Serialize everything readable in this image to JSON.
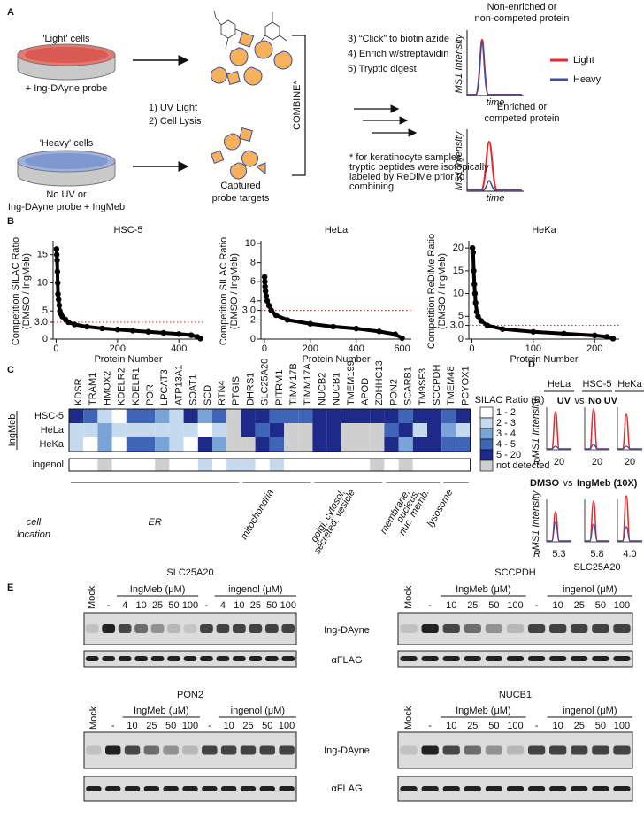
{
  "panel_a": {
    "label": "A",
    "light_cells": "'Light' cells",
    "light_probe": "+ Ing-DAyne probe",
    "heavy_cells": "'Heavy' cells",
    "heavy_probe_1": "No UV or",
    "heavy_probe_2": "Ing-DAyne probe + IngMeb",
    "steps_1": [
      "1) UV Light",
      "2) Cell Lysis"
    ],
    "captured": [
      "Captured",
      "probe targets"
    ],
    "combine": "COMBINE*",
    "steps_2": [
      "3) “Click” to biotin azide",
      "4) Enrich w/streptavidin",
      "5) Tryptic digest"
    ],
    "footnote": [
      "* for keratinocyte samples,",
      "tryptic peptides were isotopically",
      "labeled by ReDiMe prior to",
      "combining"
    ],
    "trace_top_title": [
      "Non-enriched or",
      "non-competed protein"
    ],
    "trace_bottom_title": [
      "Enriched or",
      "competed protein"
    ],
    "y_label": [
      "MS1 Intensity",
      "MS1 Intensity"
    ],
    "x_label": [
      "time",
      "time"
    ],
    "legend": [
      {
        "name": "Light",
        "color": "#e8262b"
      },
      {
        "name": "Heavy",
        "color": "#3a4ea0"
      }
    ]
  },
  "panel_b": {
    "label": "B",
    "charts": [
      {
        "type": "scatter",
        "title": "HSC-5",
        "y_label": [
          "Competition SILAC Ratio",
          "(DMSO / IngMeb)"
        ],
        "x_label": "Protein Number",
        "x": [
          1,
          2,
          3,
          4,
          5,
          6,
          8,
          10,
          12,
          15,
          20,
          30,
          40,
          60,
          100,
          150,
          200,
          250,
          300,
          350,
          400,
          440,
          460,
          470
        ],
        "values": [
          16,
          15,
          14,
          12,
          10,
          8,
          7,
          6,
          5,
          4.5,
          4,
          3.5,
          3,
          2.6,
          2.2,
          1.9,
          1.7,
          1.5,
          1.3,
          1.1,
          0.9,
          0.7,
          0.4,
          0.1
        ],
        "xlim": [
          -10,
          480
        ],
        "xticks": [
          0,
          200,
          400
        ],
        "ylim": [
          0,
          17
        ],
        "yticks": [
          0,
          {
            "value": 3,
            "label": "3.0"
          },
          5,
          10,
          15
        ],
        "threshold": 3,
        "threshold_color": "#e8262b",
        "color": "#000000"
      },
      {
        "type": "scatter",
        "title": "HeLa",
        "y_label": [
          "Competition SILAC Ratio",
          "(DMSO / IngMeb)"
        ],
        "x_label": "Protein Number",
        "x": [
          1,
          2,
          3,
          5,
          8,
          12,
          20,
          30,
          50,
          100,
          200,
          300,
          400,
          500,
          570,
          600
        ],
        "values": [
          6.5,
          6,
          5.5,
          5,
          4.5,
          4,
          3.5,
          3,
          2.5,
          2,
          1.6,
          1.3,
          1.1,
          0.8,
          0.5,
          0.1
        ],
        "xlim": [
          -15,
          640
        ],
        "xticks": [
          0,
          200,
          400,
          600
        ],
        "ylim": [
          0,
          10
        ],
        "yticks": [
          0,
          2,
          {
            "value": 3,
            "label": "3.0"
          },
          4,
          6,
          8,
          10
        ],
        "threshold": 3,
        "threshold_color": "#e8262b",
        "color": "#000000"
      },
      {
        "type": "scatter",
        "title": "HeKa",
        "y_label": [
          "Competition ReDiMe Ratio",
          "(DMSO / IngMeb)"
        ],
        "x_label": "Protein Number",
        "x": [
          1,
          2,
          3,
          4,
          5,
          6,
          8,
          10,
          15,
          25,
          50,
          100,
          150,
          200,
          220,
          230
        ],
        "values": [
          20,
          19,
          15,
          12,
          10,
          8,
          6,
          5,
          4,
          3,
          2.2,
          1.6,
          1.2,
          0.8,
          0.5,
          0.1
        ],
        "xlim": [
          -5,
          240
        ],
        "xticks": [
          0,
          100,
          200
        ],
        "ylim": [
          0,
          21
        ],
        "yticks": [
          0,
          {
            "value": 3,
            "label": "3.0"
          },
          5,
          10,
          15,
          20
        ],
        "threshold": 3,
        "threshold_color": "#e8262b",
        "color": "#000000"
      }
    ]
  },
  "panel_c": {
    "label": "C",
    "genes": [
      "KDSR",
      "TRAM1",
      "HMOX2",
      "KDELR2",
      "KDELR1",
      "POR",
      "LPCAT3",
      "ATP13A1",
      "SOAT1",
      "SCD",
      "RTN4",
      "PTGIS",
      "DHRS1",
      "SLC25A20",
      "PITRM1",
      "TIMM17B",
      "TIMM17A",
      "NUCB2",
      "NUCB1",
      "TMEM199",
      "APOD",
      "ZDHHC13",
      "PON2",
      "SCARB1",
      "TM9SF3",
      "SCCPDH",
      "TMEM48",
      "PCYOX1"
    ],
    "row_group": "IngMeb",
    "rows": [
      {
        "name": "HSC-5",
        "values": [
          4,
          3,
          1,
          0,
          3,
          3,
          2,
          1,
          4,
          2,
          3,
          5,
          4,
          4,
          3,
          3,
          3,
          4,
          4,
          4,
          4,
          4,
          4,
          3,
          4,
          4,
          3,
          4
        ]
      },
      {
        "name": "HeLa",
        "values": [
          1,
          1,
          2,
          1,
          1,
          1,
          1,
          1,
          1,
          0,
          1,
          5,
          4,
          3,
          4,
          5,
          5,
          4,
          4,
          5,
          5,
          5,
          3,
          4,
          1,
          4,
          2,
          1
        ]
      },
      {
        "name": "HeKa",
        "values": [
          1,
          0,
          2,
          0,
          3,
          3,
          2,
          1,
          0,
          4,
          2,
          5,
          5,
          4,
          3,
          5,
          5,
          4,
          4,
          5,
          5,
          5,
          4,
          2,
          4,
          4,
          3,
          3
        ]
      }
    ],
    "ingenol": {
      "name": "ingenol",
      "values": [
        0,
        0,
        5,
        0,
        0,
        0,
        5,
        0,
        0,
        1,
        0,
        1,
        1,
        0,
        1,
        0,
        0,
        0,
        0,
        0,
        0,
        5,
        0,
        5,
        0,
        0,
        0,
        0
      ]
    },
    "legend_title": "SILAC Ratio (R)",
    "levels": [
      {
        "label": "1 - 2",
        "color": "#ffffff"
      },
      {
        "label": "2 - 3",
        "color": "#c5d9ef"
      },
      {
        "label": "3 - 4",
        "color": "#7aa3d8"
      },
      {
        "label": "4 - 5",
        "color": "#3f65b8"
      },
      {
        "label": "5 - 20",
        "color": "#1d2a8a"
      },
      {
        "label": "not detected",
        "color": "#cfcfcf"
      }
    ],
    "location_title": [
      "cell",
      "location"
    ],
    "locations": [
      [
        "ER"
      ],
      [
        "mitochondria"
      ],
      [
        "golgi, cytosol,",
        "secreted, vesicle"
      ],
      [
        "membrane,",
        "nucleus,",
        "nuc. memb."
      ],
      [
        "lysosome"
      ]
    ]
  },
  "panel_d": {
    "label": "D",
    "columns": [
      "HeLa",
      "HSC-5",
      "HeKa"
    ],
    "top_legend": [
      "UV",
      "vs",
      "No UV"
    ],
    "bottom_legend": [
      "DMSO",
      "vs",
      "IngMeb (10X)"
    ],
    "y_label": [
      "MS1 Intensity",
      "MS1 Intensity"
    ],
    "r_label": [
      "R",
      "R"
    ],
    "top_r": [
      "20",
      "20",
      "20"
    ],
    "bottom_r": [
      "5.3",
      "5.8",
      "4.0"
    ],
    "protein": "SLC25A20"
  },
  "panel_e": {
    "label": "E",
    "blots": [
      {
        "title": "SLC25A20",
        "mock": "Mock",
        "groups": [
          "IngMeb (μM)",
          "ingenol (μM)"
        ],
        "lanes": [
          "-",
          "4",
          "10",
          "25",
          "50",
          "100",
          "-",
          "4",
          "10",
          "25",
          "50",
          "100"
        ]
      },
      {
        "title": "SCCPDH",
        "mock": "Mock",
        "groups": [
          "IngMeb (μM)",
          "ingenol (μM)"
        ],
        "lanes": [
          "-",
          "10",
          "25",
          "50",
          "100",
          "-",
          "10",
          "25",
          "50",
          "100"
        ]
      },
      {
        "title": "PON2",
        "mock": "Mock",
        "groups": [
          "IngMeb (μM)",
          "ingenol (μM)"
        ],
        "lanes": [
          "-",
          "10",
          "25",
          "50",
          "100",
          "-",
          "10",
          "25",
          "50",
          "100"
        ]
      },
      {
        "title": "NUCB1",
        "mock": "Mock",
        "groups": [
          "IngMeb (μM)",
          "ingenol (μM)"
        ],
        "lanes": [
          "-",
          "10",
          "25",
          "50",
          "100",
          "-",
          "10",
          "25",
          "50",
          "100"
        ]
      }
    ],
    "row_labels": [
      [
        "Ing-DAyne",
        "αFLAG"
      ],
      [
        "Ing-DAyne",
        "αFLAG"
      ]
    ]
  }
}
